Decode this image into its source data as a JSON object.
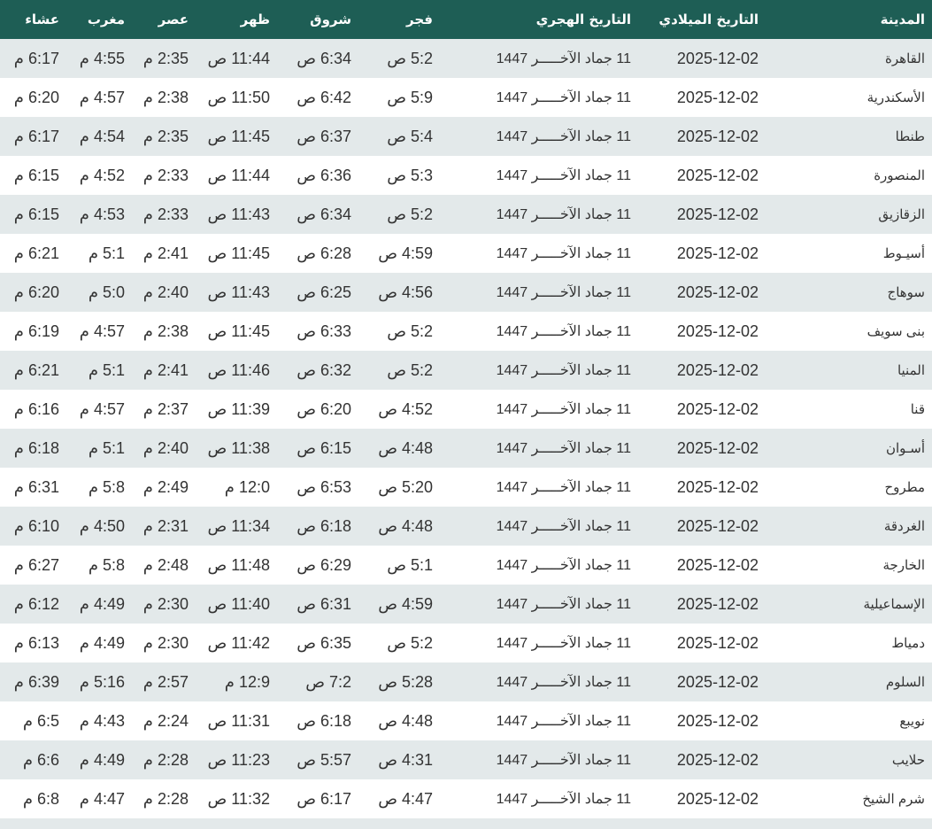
{
  "headers": [
    "المدينة",
    "التاريخ الميلادي",
    "التاريخ الهجري",
    "فجر",
    "شروق",
    "ظهر",
    "عصر",
    "مغرب",
    "عشاء"
  ],
  "colors": {
    "header_bg": "#1e5e55",
    "stripe": "#e3e9ea",
    "text": "#333333"
  },
  "rows": [
    [
      "القاهرة",
      "2025-12-02",
      "11 جماد الآخـــــر 1447",
      "5:2 ص",
      "6:34 ص",
      "11:44 ص",
      "2:35 م",
      "4:55 م",
      "6:17 م"
    ],
    [
      "الأسكندرية",
      "2025-12-02",
      "11 جماد الآخـــــر 1447",
      "5:9 ص",
      "6:42 ص",
      "11:50 ص",
      "2:38 م",
      "4:57 م",
      "6:20 م"
    ],
    [
      "طنطا",
      "2025-12-02",
      "11 جماد الآخـــــر 1447",
      "5:4 ص",
      "6:37 ص",
      "11:45 ص",
      "2:35 م",
      "4:54 م",
      "6:17 م"
    ],
    [
      "المنصورة",
      "2025-12-02",
      "11 جماد الآخـــــر 1447",
      "5:3 ص",
      "6:36 ص",
      "11:44 ص",
      "2:33 م",
      "4:52 م",
      "6:15 م"
    ],
    [
      "الزقازيق",
      "2025-12-02",
      "11 جماد الآخـــــر 1447",
      "5:2 ص",
      "6:34 ص",
      "11:43 ص",
      "2:33 م",
      "4:53 م",
      "6:15 م"
    ],
    [
      "أسيـوط",
      "2025-12-02",
      "11 جماد الآخـــــر 1447",
      "4:59 ص",
      "6:28 ص",
      "11:45 ص",
      "2:41 م",
      "5:1 م",
      "6:21 م"
    ],
    [
      "سوهاج",
      "2025-12-02",
      "11 جماد الآخـــــر 1447",
      "4:56 ص",
      "6:25 ص",
      "11:43 ص",
      "2:40 م",
      "5:0 م",
      "6:20 م"
    ],
    [
      "بنى سويف",
      "2025-12-02",
      "11 جماد الآخـــــر 1447",
      "5:2 ص",
      "6:33 ص",
      "11:45 ص",
      "2:38 م",
      "4:57 م",
      "6:19 م"
    ],
    [
      "المنيا",
      "2025-12-02",
      "11 جماد الآخـــــر 1447",
      "5:2 ص",
      "6:32 ص",
      "11:46 ص",
      "2:41 م",
      "5:1 م",
      "6:21 م"
    ],
    [
      "قنا",
      "2025-12-02",
      "11 جماد الآخـــــر 1447",
      "4:52 ص",
      "6:20 ص",
      "11:39 ص",
      "2:37 م",
      "4:57 م",
      "6:16 م"
    ],
    [
      "أسـوان",
      "2025-12-02",
      "11 جماد الآخـــــر 1447",
      "4:48 ص",
      "6:15 ص",
      "11:38 ص",
      "2:40 م",
      "5:1 م",
      "6:18 م"
    ],
    [
      "مطروح",
      "2025-12-02",
      "11 جماد الآخـــــر 1447",
      "5:20 ص",
      "6:53 ص",
      "12:0 م",
      "2:49 م",
      "5:8 م",
      "6:31 م"
    ],
    [
      "الغردقة",
      "2025-12-02",
      "11 جماد الآخـــــر 1447",
      "4:48 ص",
      "6:18 ص",
      "11:34 ص",
      "2:31 م",
      "4:50 م",
      "6:10 م"
    ],
    [
      "الخارجة",
      "2025-12-02",
      "11 جماد الآخـــــر 1447",
      "5:1 ص",
      "6:29 ص",
      "11:48 ص",
      "2:48 م",
      "5:8 م",
      "6:27 م"
    ],
    [
      "الإسماعيلية",
      "2025-12-02",
      "11 جماد الآخـــــر 1447",
      "4:59 ص",
      "6:31 ص",
      "11:40 ص",
      "2:30 م",
      "4:49 م",
      "6:12 م"
    ],
    [
      "دمياط",
      "2025-12-02",
      "11 جماد الآخـــــر 1447",
      "5:2 ص",
      "6:35 ص",
      "11:42 ص",
      "2:30 م",
      "4:49 م",
      "6:13 م"
    ],
    [
      "السلوم",
      "2025-12-02",
      "11 جماد الآخـــــر 1447",
      "5:28 ص",
      "7:2 ص",
      "12:9 م",
      "2:57 م",
      "5:16 م",
      "6:39 م"
    ],
    [
      "نويبع",
      "2025-12-02",
      "11 جماد الآخـــــر 1447",
      "4:48 ص",
      "6:18 ص",
      "11:31 ص",
      "2:24 م",
      "4:43 م",
      "6:5 م"
    ],
    [
      "حلايب",
      "2025-12-02",
      "11 جماد الآخـــــر 1447",
      "4:31 ص",
      "5:57 ص",
      "11:23 ص",
      "2:28 م",
      "4:49 م",
      "6:6 م"
    ],
    [
      "شرم الشيخ",
      "2025-12-02",
      "11 جماد الآخـــــر 1447",
      "4:47 ص",
      "6:17 ص",
      "11:32 ص",
      "2:28 م",
      "4:47 م",
      "6:8 م"
    ]
  ]
}
